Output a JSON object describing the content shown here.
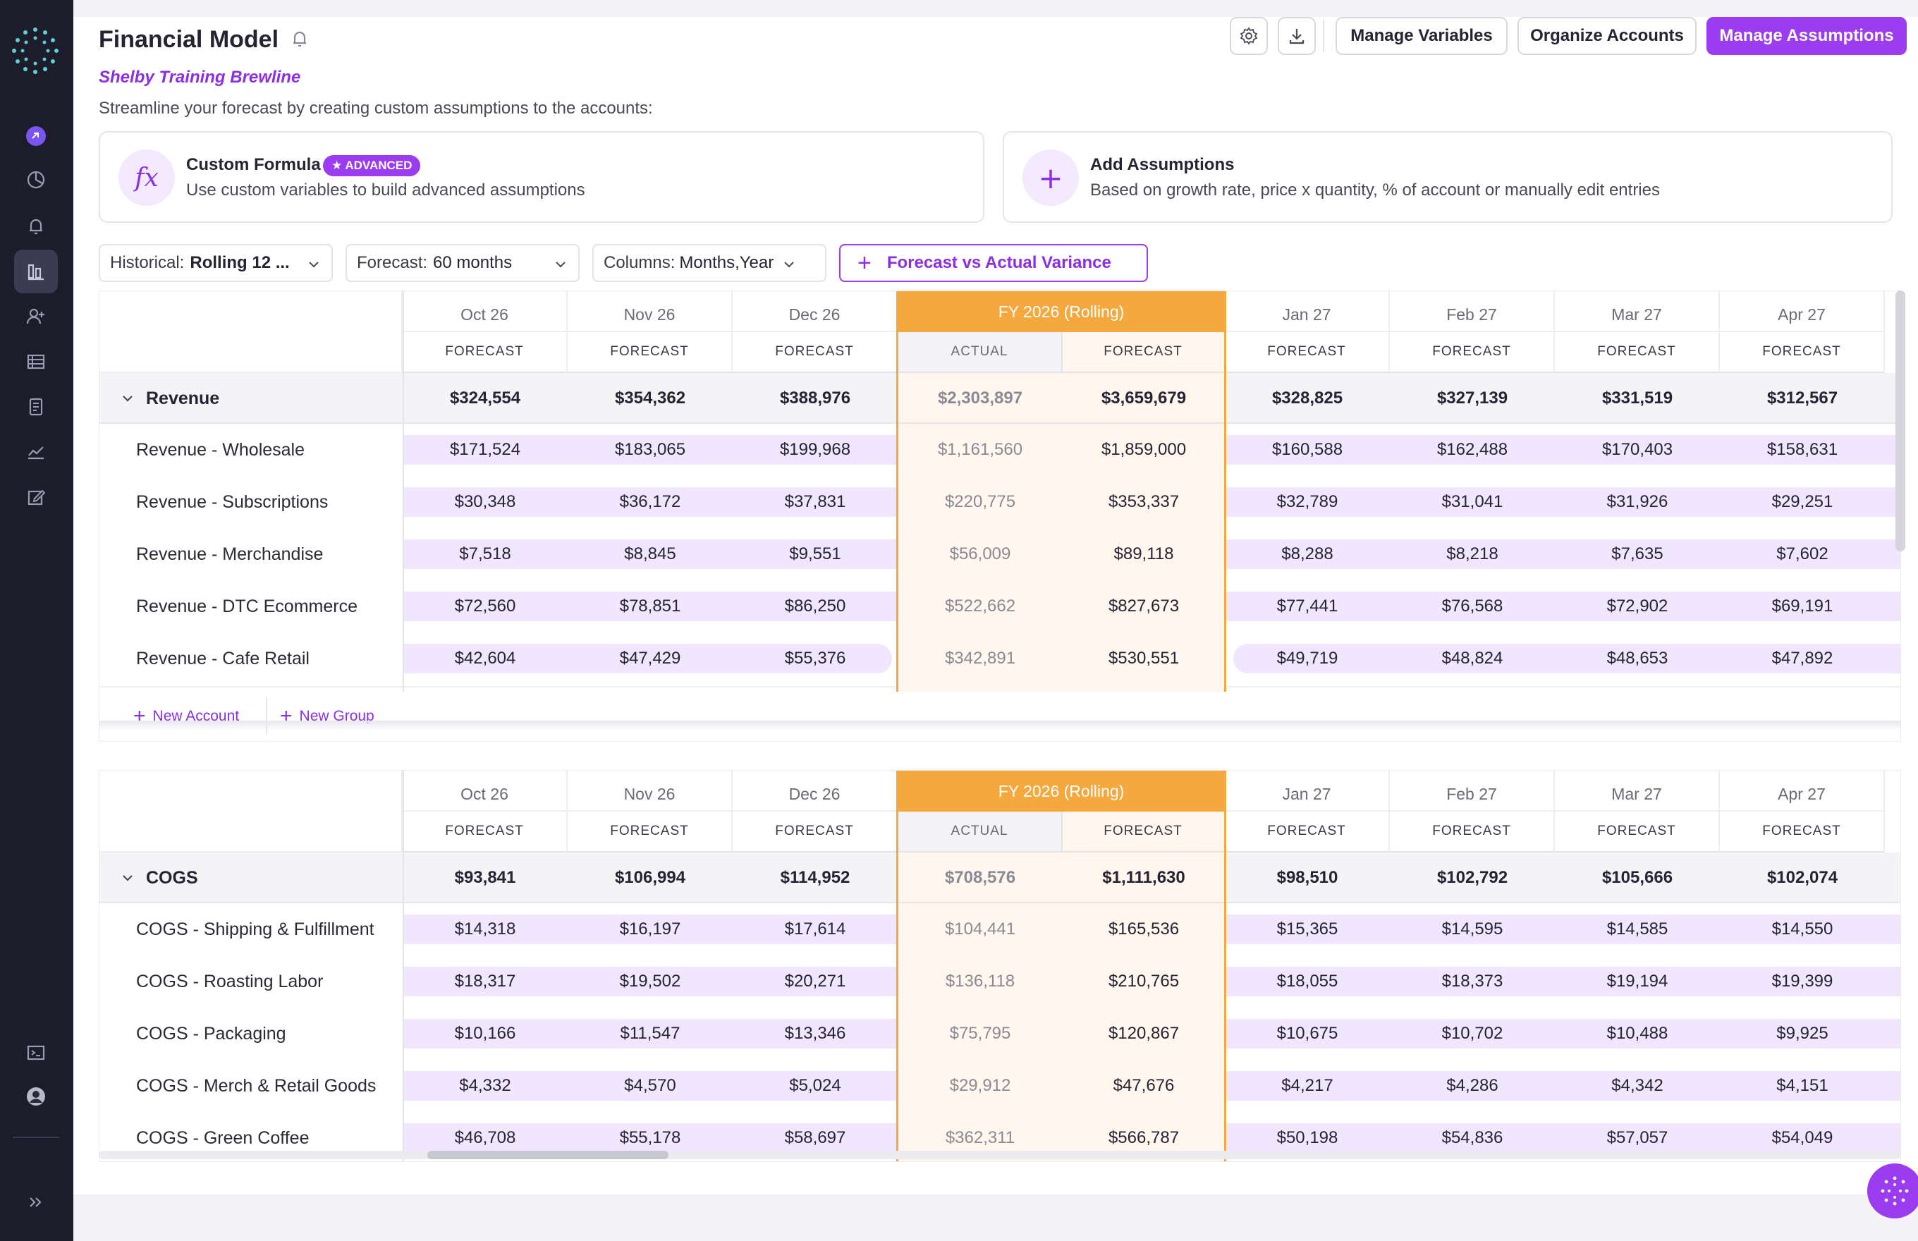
{
  "header": {
    "title": "Financial Model",
    "settings_icon": "gear-icon",
    "download_icon": "download-icon",
    "buttons": {
      "manage_variables": "Manage Variables",
      "organize_accounts": "Organize Accounts",
      "manage_assumptions": "Manage Assumptions"
    }
  },
  "company": "Shelby Training Brewline",
  "tagline": "Streamline your forecast by creating custom assumptions to the accounts:",
  "cards": {
    "custom_formula": {
      "icon": "fx",
      "title": "Custom Formula",
      "badge": "ADVANCED",
      "subtitle": "Use custom variables to build advanced assumptions"
    },
    "add_assumptions": {
      "icon": "+",
      "title": "Add Assumptions",
      "subtitle": "Based on growth rate, price x quantity, % of account or manually edit entries"
    }
  },
  "filters": {
    "historical_label": "Historical:",
    "historical_value": "Rolling 12 ...",
    "forecast_label": "Forecast:",
    "forecast_value": "60 months",
    "columns_label": "Columns:",
    "columns_value": "Months,Year",
    "variance_button": "Forecast vs Actual Variance"
  },
  "columns": {
    "months": [
      "Oct 26",
      "Nov 26",
      "Dec 26",
      "Jan 27",
      "Feb 27",
      "Mar 27",
      "Apr 27"
    ],
    "fy_label": "FY 2026 (Rolling)",
    "forecast_label": "FORECAST",
    "actual_label": "ACTUAL"
  },
  "revenue": {
    "group": "Revenue",
    "total": [
      "$324,554",
      "$354,362",
      "$388,976",
      "$2,303,897",
      "$3,659,679",
      "$328,825",
      "$327,139",
      "$331,519",
      "$312,567"
    ],
    "rows": [
      {
        "name": "Revenue - Wholesale",
        "values": [
          "$171,524",
          "$183,065",
          "$199,968",
          "$1,161,560",
          "$1,859,000",
          "$160,588",
          "$162,488",
          "$170,403",
          "$158,631"
        ]
      },
      {
        "name": "Revenue - Subscriptions",
        "values": [
          "$30,348",
          "$36,172",
          "$37,831",
          "$220,775",
          "$353,337",
          "$32,789",
          "$31,041",
          "$31,926",
          "$29,251"
        ]
      },
      {
        "name": "Revenue - Merchandise",
        "values": [
          "$7,518",
          "$8,845",
          "$9,551",
          "$56,009",
          "$89,118",
          "$8,288",
          "$8,218",
          "$7,635",
          "$7,602"
        ]
      },
      {
        "name": "Revenue - DTC Ecommerce",
        "values": [
          "$72,560",
          "$78,851",
          "$86,250",
          "$522,662",
          "$827,673",
          "$77,441",
          "$76,568",
          "$72,902",
          "$69,191"
        ]
      },
      {
        "name": "Revenue - Cafe Retail",
        "values": [
          "$42,604",
          "$47,429",
          "$55,376",
          "$342,891",
          "$530,551",
          "$49,719",
          "$48,824",
          "$48,653",
          "$47,892"
        ]
      }
    ],
    "new_account": "New Account",
    "new_group": "New Group"
  },
  "cogs": {
    "group": "COGS",
    "total": [
      "$93,841",
      "$106,994",
      "$114,952",
      "$708,576",
      "$1,111,630",
      "$98,510",
      "$102,792",
      "$105,666",
      "$102,074"
    ],
    "rows": [
      {
        "name": "COGS - Shipping & Fulfillment",
        "values": [
          "$14,318",
          "$16,197",
          "$17,614",
          "$104,441",
          "$165,536",
          "$15,365",
          "$14,595",
          "$14,585",
          "$14,550"
        ]
      },
      {
        "name": "COGS - Roasting Labor",
        "values": [
          "$18,317",
          "$19,502",
          "$20,271",
          "$136,118",
          "$210,765",
          "$18,055",
          "$18,373",
          "$19,194",
          "$19,399"
        ]
      },
      {
        "name": "COGS - Packaging",
        "values": [
          "$10,166",
          "$11,547",
          "$13,346",
          "$75,795",
          "$120,867",
          "$10,675",
          "$10,702",
          "$10,488",
          "$9,925"
        ]
      },
      {
        "name": "COGS - Merch & Retail Goods",
        "values": [
          "$4,332",
          "$4,570",
          "$5,024",
          "$29,912",
          "$47,676",
          "$4,217",
          "$4,286",
          "$4,342",
          "$4,151"
        ]
      },
      {
        "name": "COGS - Green Coffee",
        "values": [
          "$46,708",
          "$55,178",
          "$58,697",
          "$362,311",
          "$566,787",
          "$50,198",
          "$54,836",
          "$57,057",
          "$54,049"
        ]
      }
    ]
  },
  "colors": {
    "accent": "#9b3cf0",
    "fy_header": "#f4a83d",
    "sidebar": "#1d1c2b",
    "pill": "#f0e6fd"
  },
  "sidebar_icons": [
    "logo-icon",
    "integrations-icon",
    "dashboard-icon",
    "notifications-icon",
    "financial-model-icon",
    "users-icon",
    "transactions-icon",
    "reports-icon",
    "analytics-icon",
    "edit-icon",
    "terminal-icon",
    "profile-icon",
    "expand-icon"
  ]
}
